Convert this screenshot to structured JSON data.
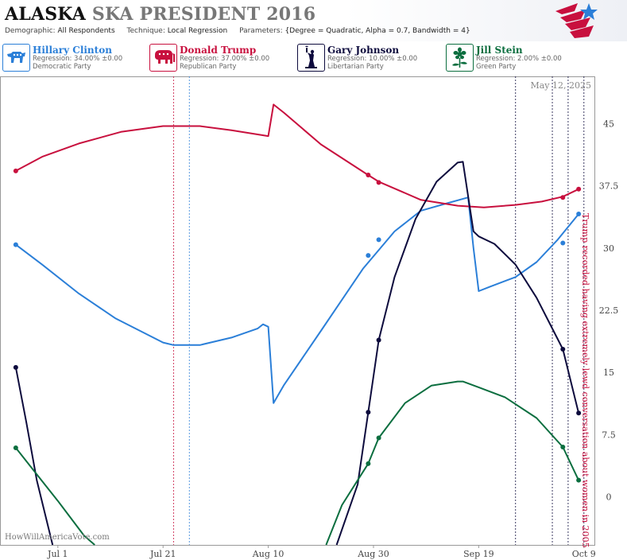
{
  "header": {
    "title_state": "ALASKA",
    "title_rest": "SKA PRESIDENT 2016",
    "demographic_label": "Demographic:",
    "demographic_value": "All Respondents",
    "technique_label": "Technique:",
    "technique_value": "Local Regression",
    "parameters_label": "Parameters:",
    "parameters_value": "{Degree = Quadratic, Alpha = 0.7, Bandwidth = 4}"
  },
  "candidates": [
    {
      "name": "Hillary Clinton",
      "regression": "Regression: 34.00% ±0.00",
      "party": "Democratic Party",
      "color": "#2b7fd8",
      "icon": "donkey-icon"
    },
    {
      "name": "Donald Trump",
      "regression": "Regression: 37.00% ±0.00",
      "party": "Republican Party",
      "color": "#c8103e",
      "icon": "elephant-icon"
    },
    {
      "name": "Gary Johnson",
      "regression": "Regression: 10.00% ±0.00",
      "party": "Libertarian Party",
      "color": "#0d0b3d",
      "icon": "liberty-torch-icon"
    },
    {
      "name": "Jill Stein",
      "regression": "Regression: 2.00% ±0.00",
      "party": "Green Party",
      "color": "#0b6e3f",
      "icon": "flower-icon"
    }
  ],
  "chart_data": {
    "type": "line",
    "date_label": "May 12, 2025",
    "watermark": "HowWillAmericaVote.com",
    "x_ticks": [
      "Jul 1",
      "Jul 21",
      "Aug 10",
      "Aug 30",
      "Sep 19",
      "Oct 9"
    ],
    "x_range": [
      "Jun 20",
      "Oct 11"
    ],
    "y_ticks": [
      "0",
      "7.5",
      "15",
      "22.5",
      "30",
      "37.5",
      "45"
    ],
    "ylim": [
      -5.8,
      50.7
    ],
    "grid": false,
    "annotation": {
      "date": "Oct 8",
      "text": "Trump recorded having extremely lewd conversation about women in 2005",
      "color": "#c8103e"
    },
    "vlines": [
      {
        "date": "Jul 23",
        "color": "#c8103e"
      },
      {
        "date": "Jul 26",
        "color": "#2b7fd8"
      },
      {
        "date": "Sep 26",
        "color": "#0d0b3d"
      },
      {
        "date": "Oct 3",
        "color": "#0d0b3d"
      },
      {
        "date": "Oct 6",
        "color": "#0d0b3d"
      },
      {
        "date": "Oct 9",
        "color": "#0d0b3d"
      }
    ],
    "series": [
      {
        "name": "Hillary Clinton",
        "color": "#2b7fd8",
        "line": [
          [
            "Jun 23",
            30.4
          ],
          [
            "Jun 28",
            28
          ],
          [
            "Jul 5",
            24.5
          ],
          [
            "Jul 12",
            21.5
          ],
          [
            "Jul 21",
            18.6
          ],
          [
            "Jul 23",
            18.3
          ],
          [
            "Jul 28",
            18.3
          ],
          [
            "Aug 3",
            19.2
          ],
          [
            "Aug 8",
            20.3
          ],
          [
            "Aug 9",
            20.8
          ],
          [
            "Aug 10",
            20.5
          ],
          [
            "Aug 11",
            11.3
          ],
          [
            "Aug 13",
            13.5
          ],
          [
            "Aug 20",
            20
          ],
          [
            "Aug 28",
            27.5
          ],
          [
            "Sep 3",
            32
          ],
          [
            "Sep 8",
            34.5
          ],
          [
            "Sep 13",
            35.4
          ],
          [
            "Sep 17",
            36.1
          ],
          [
            "Sep 18",
            30
          ],
          [
            "Sep 19",
            24.8
          ],
          [
            "Sep 21",
            25.3
          ],
          [
            "Sep 26",
            26.5
          ],
          [
            "Sep 30",
            28.3
          ],
          [
            "Oct 4",
            31
          ],
          [
            "Oct 8",
            34.1
          ]
        ],
        "points": [
          [
            "Jun 23",
            30.4
          ],
          [
            "Aug 29",
            29.1
          ],
          [
            "Aug 31",
            31
          ],
          [
            "Oct 5",
            30.6
          ],
          [
            "Oct 8",
            34.1
          ]
        ]
      },
      {
        "name": "Donald Trump",
        "color": "#c8103e",
        "line": [
          [
            "Jun 23",
            39.3
          ],
          [
            "Jun 28",
            41
          ],
          [
            "Jul 5",
            42.6
          ],
          [
            "Jul 13",
            44
          ],
          [
            "Jul 21",
            44.7
          ],
          [
            "Jul 28",
            44.7
          ],
          [
            "Aug 3",
            44.2
          ],
          [
            "Aug 10",
            43.5
          ],
          [
            "Aug 11",
            47.3
          ],
          [
            "Aug 13",
            46.3
          ],
          [
            "Aug 20",
            42.5
          ],
          [
            "Aug 29",
            38.8
          ],
          [
            "Aug 31",
            38
          ],
          [
            "Sep 8",
            35.8
          ],
          [
            "Sep 15",
            35.1
          ],
          [
            "Sep 20",
            34.9
          ],
          [
            "Sep 26",
            35.2
          ],
          [
            "Oct 1",
            35.6
          ],
          [
            "Oct 5",
            36.2
          ],
          [
            "Oct 8",
            37.1
          ]
        ],
        "points": [
          [
            "Jun 23",
            39.3
          ],
          [
            "Aug 29",
            38.8
          ],
          [
            "Aug 31",
            37.9
          ],
          [
            "Oct 5",
            36.1
          ],
          [
            "Oct 8",
            37.1
          ]
        ]
      },
      {
        "name": "Gary Johnson",
        "color": "#0d0b3d",
        "line": [
          [
            "Jun 23",
            15.6
          ],
          [
            "Jun 25",
            9
          ],
          [
            "Jun 27",
            2
          ],
          [
            "Jun 30",
            -5.8
          ],
          null,
          [
            "Aug 23",
            -5.8
          ],
          [
            "Aug 27",
            1.5
          ],
          [
            "Aug 29",
            10.2
          ],
          [
            "Aug 31",
            18.9
          ],
          [
            "Sep 3",
            26.5
          ],
          [
            "Sep 7",
            33.5
          ],
          [
            "Sep 11",
            38
          ],
          [
            "Sep 15",
            40.3
          ],
          [
            "Sep 16",
            40.4
          ],
          [
            "Sep 18",
            32
          ],
          [
            "Sep 19",
            31.4
          ],
          [
            "Sep 22",
            30.5
          ],
          [
            "Sep 26",
            28
          ],
          [
            "Sep 30",
            24
          ],
          [
            "Oct 5",
            17.8
          ],
          [
            "Oct 8",
            10.1
          ]
        ],
        "points": [
          [
            "Jun 23",
            15.6
          ],
          [
            "Aug 29",
            10.2
          ],
          [
            "Aug 31",
            18.9
          ],
          [
            "Oct 5",
            17.8
          ],
          [
            "Oct 8",
            10.1
          ]
        ]
      },
      {
        "name": "Jill Stein",
        "color": "#0b6e3f",
        "line": [
          [
            "Jun 23",
            5.9
          ],
          [
            "Jun 27",
            2.7
          ],
          [
            "Jul 1",
            -0.5
          ],
          [
            "Jul 6",
            -4.7
          ],
          [
            "Jul 8",
            -5.8
          ],
          null,
          [
            "Aug 21",
            -5.8
          ],
          [
            "Aug 24",
            -1
          ],
          [
            "Aug 27",
            2
          ],
          [
            "Aug 29",
            4
          ],
          [
            "Aug 31",
            7.1
          ],
          [
            "Sep 5",
            11.3
          ],
          [
            "Sep 10",
            13.4
          ],
          [
            "Sep 15",
            13.9
          ],
          [
            "Sep 16",
            13.9
          ],
          [
            "Sep 19",
            13.2
          ],
          [
            "Sep 24",
            12
          ],
          [
            "Sep 30",
            9.5
          ],
          [
            "Oct 5",
            6
          ],
          [
            "Oct 8",
            2
          ]
        ],
        "points": [
          [
            "Jun 23",
            5.9
          ],
          [
            "Aug 29",
            4
          ],
          [
            "Aug 31",
            7.1
          ],
          [
            "Oct 5",
            6
          ],
          [
            "Oct 8",
            2
          ]
        ]
      }
    ]
  }
}
